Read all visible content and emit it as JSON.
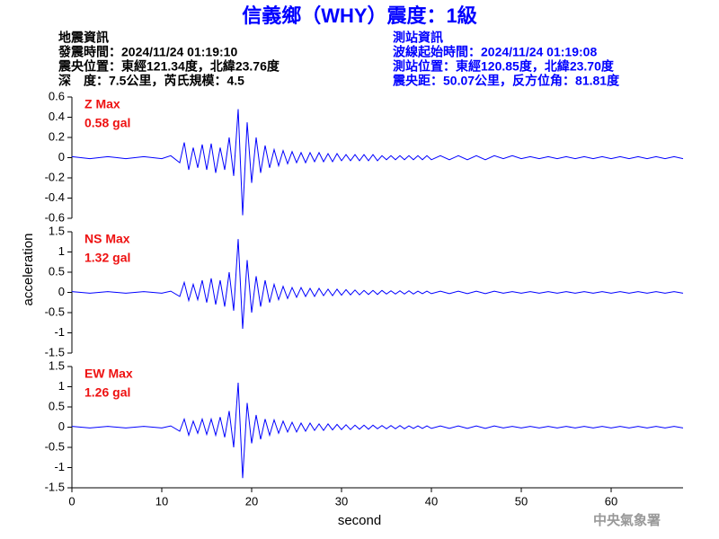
{
  "header": {
    "title": "信義鄉（WHY）震度：1級",
    "quake": [
      "地震資訊",
      "發震時間：2024/11/24 01:19:10",
      "震央位置：東經121.34度，北緯23.76度",
      "深　度：7.5公里，芮氏規模：4.5"
    ],
    "station": [
      "測站資訊",
      "波線起始時間：2024/11/24 01:19:08",
      "測站位置：東經120.85度，北緯23.70度",
      "震央距：50.07公里，反方位角：81.81度"
    ],
    "credit": "中央氣象署"
  },
  "chart_data": {
    "type": "line",
    "xlabel": "second",
    "ylabel": "acceleration",
    "xlim": [
      0,
      68
    ],
    "xticks": [
      0,
      10,
      20,
      30,
      40,
      50,
      60
    ],
    "x": [
      0,
      2,
      4,
      6,
      8,
      10,
      11,
      12,
      12.5,
      13,
      13.5,
      14,
      14.5,
      15,
      15.5,
      16,
      16.5,
      17,
      17.5,
      18,
      18.5,
      19,
      19.5,
      20,
      20.5,
      21,
      21.5,
      22,
      22.5,
      23,
      23.5,
      24,
      24.5,
      25,
      25.5,
      26,
      26.5,
      27,
      27.5,
      28,
      28.5,
      29,
      29.5,
      30,
      30.5,
      31,
      31.5,
      32,
      32.5,
      33,
      33.5,
      34,
      34.5,
      35,
      35.5,
      36,
      36.5,
      37,
      37.5,
      38,
      38.5,
      39,
      39.5,
      40,
      41,
      42,
      43,
      44,
      45,
      46,
      47,
      48,
      49,
      50,
      51,
      52,
      53,
      54,
      55,
      56,
      57,
      58,
      59,
      60,
      61,
      62,
      63,
      64,
      65,
      66,
      67,
      68
    ],
    "panels": [
      {
        "label": "Z Max",
        "max_label": "0.58 gal",
        "ylim": [
          -0.6,
          0.6
        ],
        "yticks": [
          -0.6,
          -0.4,
          -0.2,
          0,
          0.2,
          0.4,
          0.6
        ],
        "series": [
          {
            "color": "#0000ff",
            "values": [
              0.01,
              -0.01,
              0.01,
              -0.01,
              0.01,
              -0.01,
              0.02,
              -0.05,
              0.15,
              -0.12,
              0.1,
              -0.1,
              0.13,
              -0.12,
              0.14,
              -0.15,
              0.1,
              -0.12,
              0.2,
              -0.18,
              0.48,
              -0.57,
              0.35,
              -0.25,
              0.2,
              -0.15,
              0.12,
              -0.1,
              0.08,
              -0.08,
              0.07,
              -0.06,
              0.06,
              -0.05,
              0.05,
              -0.05,
              0.05,
              -0.04,
              0.05,
              -0.04,
              0.04,
              -0.04,
              0.04,
              -0.03,
              0.03,
              -0.03,
              0.03,
              -0.03,
              0.03,
              -0.03,
              0.03,
              -0.03,
              0.02,
              -0.02,
              0.02,
              -0.02,
              0.02,
              -0.02,
              0.02,
              -0.02,
              0.02,
              -0.02,
              0.02,
              -0.02,
              0.02,
              -0.02,
              0.02,
              -0.02,
              0.02,
              -0.02,
              0.02,
              -0.01,
              0.02,
              -0.01,
              0.01,
              -0.01,
              0.01,
              -0.01,
              0.01,
              -0.01,
              0.01,
              -0.01,
              0.01,
              -0.01,
              0.01,
              -0.01,
              0.01,
              -0.01,
              0.01,
              -0.01,
              0.01,
              -0.01
            ]
          }
        ]
      },
      {
        "label": "NS Max",
        "max_label": "1.32 gal",
        "ylim": [
          -1.5,
          1.5
        ],
        "yticks": [
          -1.5,
          -1,
          -0.5,
          0,
          0.5,
          1,
          1.5
        ],
        "series": [
          {
            "color": "#0000ff",
            "values": [
              0.02,
              -0.02,
              0.02,
              -0.02,
              0.02,
              -0.02,
              0.03,
              -0.1,
              0.25,
              -0.2,
              0.2,
              -0.18,
              0.3,
              -0.25,
              0.35,
              -0.3,
              0.3,
              -0.35,
              0.5,
              -0.45,
              1.32,
              -0.9,
              0.8,
              -0.5,
              0.4,
              -0.35,
              0.3,
              -0.25,
              0.2,
              -0.18,
              0.15,
              -0.15,
              0.12,
              -0.12,
              0.12,
              -0.1,
              0.1,
              -0.1,
              0.1,
              -0.08,
              0.08,
              -0.08,
              0.08,
              -0.07,
              0.07,
              -0.06,
              0.06,
              -0.06,
              0.05,
              -0.05,
              0.05,
              -0.05,
              0.05,
              -0.04,
              0.04,
              -0.04,
              0.04,
              -0.04,
              0.04,
              -0.04,
              0.03,
              -0.03,
              0.03,
              -0.03,
              0.03,
              -0.03,
              0.03,
              -0.03,
              0.03,
              -0.03,
              0.03,
              -0.02,
              0.02,
              -0.02,
              0.02,
              -0.02,
              0.02,
              -0.02,
              0.02,
              -0.02,
              0.02,
              -0.02,
              0.02,
              -0.02,
              0.02,
              -0.02,
              0.02,
              -0.02,
              0.02,
              -0.02,
              0.02,
              -0.02
            ]
          }
        ]
      },
      {
        "label": "EW Max",
        "max_label": "1.26 gal",
        "ylim": [
          -1.5,
          1.5
        ],
        "yticks": [
          -1.5,
          -1,
          -0.5,
          0,
          0.5,
          1,
          1.5
        ],
        "series": [
          {
            "color": "#0000ff",
            "values": [
              0.02,
              -0.02,
              0.02,
              -0.02,
              0.02,
              -0.02,
              0.03,
              -0.1,
              0.2,
              -0.2,
              0.15,
              -0.15,
              0.2,
              -0.18,
              0.2,
              -0.2,
              0.25,
              -0.25,
              0.4,
              -0.5,
              1.1,
              -1.26,
              0.6,
              -0.4,
              0.3,
              -0.3,
              0.2,
              -0.2,
              0.18,
              -0.15,
              0.15,
              -0.12,
              0.12,
              -0.12,
              0.1,
              -0.1,
              0.1,
              -0.08,
              0.08,
              -0.08,
              0.08,
              -0.07,
              0.07,
              -0.06,
              0.06,
              -0.06,
              0.05,
              -0.05,
              0.05,
              -0.05,
              0.05,
              -0.04,
              0.04,
              -0.04,
              0.04,
              -0.04,
              0.04,
              -0.04,
              0.03,
              -0.03,
              0.03,
              -0.03,
              0.03,
              -0.03,
              0.03,
              -0.03,
              0.03,
              -0.03,
              0.03,
              -0.03,
              0.03,
              -0.02,
              0.02,
              -0.02,
              0.02,
              -0.02,
              0.02,
              -0.02,
              0.02,
              -0.02,
              0.02,
              -0.02,
              0.02,
              -0.02,
              0.02,
              -0.02,
              0.02,
              -0.02,
              0.02,
              -0.02,
              0.02,
              -0.02
            ]
          }
        ]
      }
    ]
  }
}
